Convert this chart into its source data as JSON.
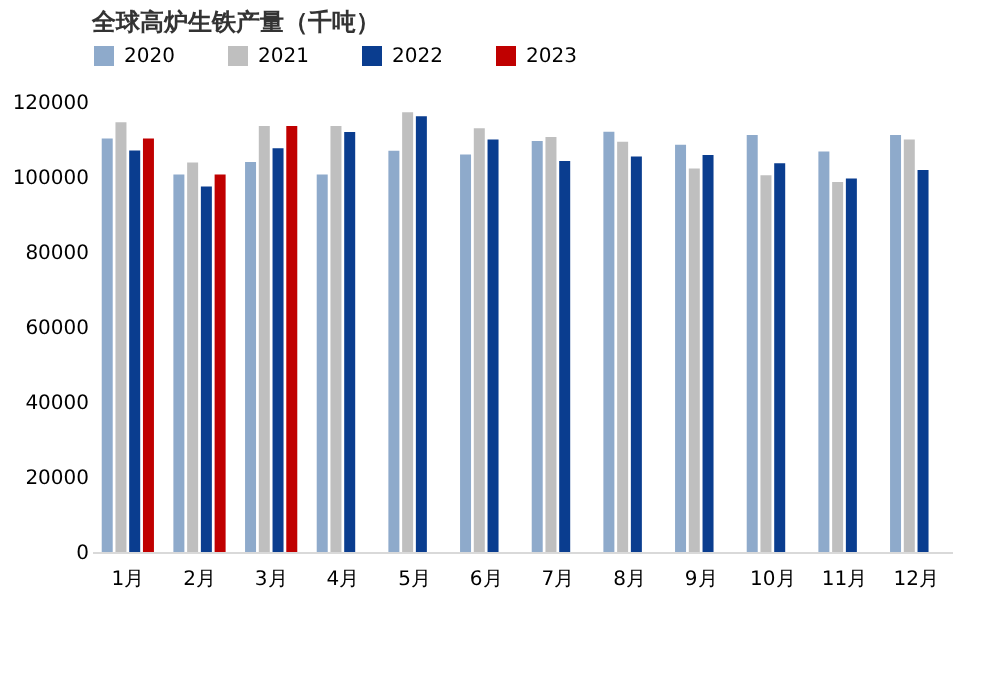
{
  "chart_data": {
    "type": "bar",
    "title": "全球高炉生铁产量（千吨）",
    "categories": [
      "1月",
      "2月",
      "3月",
      "4月",
      "5月",
      "6月",
      "7月",
      "8月",
      "9月",
      "10月",
      "11月",
      "12月"
    ],
    "series": [
      {
        "name": "2020",
        "color": "#8eaacb",
        "values": [
          110300,
          100700,
          104000,
          100700,
          107000,
          106000,
          109600,
          112100,
          108600,
          111200,
          106800,
          111200
        ]
      },
      {
        "name": "2021",
        "color": "#bfbfbf",
        "values": [
          114600,
          103900,
          113600,
          113600,
          117300,
          113000,
          110700,
          109400,
          102300,
          100500,
          98700,
          110000
        ]
      },
      {
        "name": "2022",
        "color": "#0a3d8f",
        "values": [
          107100,
          97500,
          107700,
          112000,
          116200,
          110000,
          104300,
          105500,
          105900,
          103700,
          99600,
          101900
        ]
      },
      {
        "name": "2023",
        "color": "#c00000",
        "values": [
          110300,
          100700,
          113600,
          null,
          null,
          null,
          null,
          null,
          null,
          null,
          null,
          null
        ]
      }
    ],
    "ylim": [
      0,
      120000
    ],
    "yticks": [
      0,
      20000,
      40000,
      60000,
      80000,
      100000,
      120000
    ],
    "grid": false,
    "legend": "top"
  }
}
